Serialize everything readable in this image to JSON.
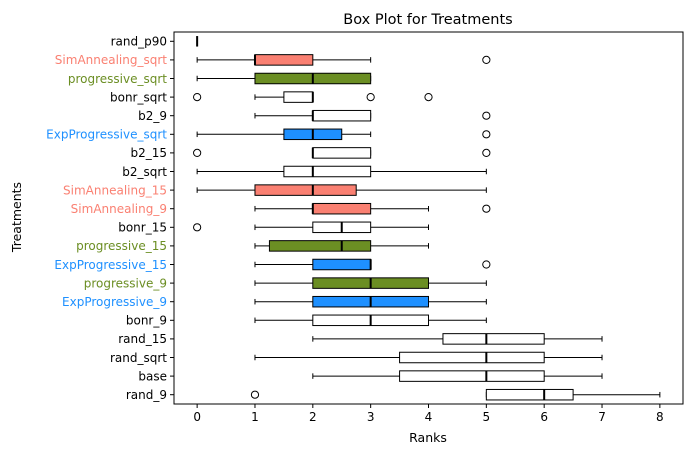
{
  "chart_data": {
    "type": "boxplot",
    "orientation": "horizontal",
    "title": "Box Plot for Treatments",
    "xlabel": "Ranks",
    "ylabel": "Treatments",
    "xlim": [
      -0.4,
      8.4
    ],
    "xticks": [
      0,
      1,
      2,
      3,
      4,
      5,
      6,
      7,
      8
    ],
    "grid": false,
    "colors": {
      "SimAnnealing": "#fa8072",
      "progressive": "#6b8e23",
      "ExpProgressive": "#1e90ff",
      "default": "#ffffff",
      "text_default": "#000000"
    },
    "series": [
      {
        "name": "rand_p90",
        "group": "default",
        "whisker_low": 0,
        "q1": 0,
        "median": 0,
        "q3": 0,
        "whisker_high": 0,
        "outliers": []
      },
      {
        "name": "SimAnnealing_sqrt",
        "group": "SimAnnealing",
        "whisker_low": 0,
        "q1": 1,
        "median": 1,
        "q3": 2,
        "whisker_high": 3,
        "outliers": [
          5
        ]
      },
      {
        "name": "progressive_sqrt",
        "group": "progressive",
        "whisker_low": 0,
        "q1": 1,
        "median": 2,
        "q3": 3,
        "whisker_high": 3,
        "outliers": []
      },
      {
        "name": "bonr_sqrt",
        "group": "default",
        "whisker_low": 1,
        "q1": 1.5,
        "median": 2,
        "q3": 2,
        "whisker_high": 2,
        "outliers": [
          0,
          3,
          4
        ]
      },
      {
        "name": "b2_9",
        "group": "default",
        "whisker_low": 1,
        "q1": 2,
        "median": 2,
        "q3": 3,
        "whisker_high": 3,
        "outliers": [
          5
        ]
      },
      {
        "name": "ExpProgressive_sqrt",
        "group": "ExpProgressive",
        "whisker_low": 0,
        "q1": 1.5,
        "median": 2,
        "q3": 2.5,
        "whisker_high": 3,
        "outliers": [
          5
        ]
      },
      {
        "name": "b2_15",
        "group": "default",
        "whisker_low": 2,
        "q1": 2,
        "median": 2,
        "q3": 3,
        "whisker_high": 3,
        "outliers": [
          0,
          5
        ]
      },
      {
        "name": "b2_sqrt",
        "group": "default",
        "whisker_low": 0,
        "q1": 1.5,
        "median": 2,
        "q3": 3,
        "whisker_high": 5,
        "outliers": []
      },
      {
        "name": "SimAnnealing_15",
        "group": "SimAnnealing",
        "whisker_low": 0,
        "q1": 1,
        "median": 2,
        "q3": 2.75,
        "whisker_high": 5,
        "outliers": []
      },
      {
        "name": "SimAnnealing_9",
        "group": "SimAnnealing",
        "whisker_low": 1,
        "q1": 2,
        "median": 2,
        "q3": 3,
        "whisker_high": 4,
        "outliers": [
          5
        ]
      },
      {
        "name": "bonr_15",
        "group": "default",
        "whisker_low": 1,
        "q1": 2,
        "median": 2.5,
        "q3": 3,
        "whisker_high": 4,
        "outliers": [
          0
        ]
      },
      {
        "name": "progressive_15",
        "group": "progressive",
        "whisker_low": 1,
        "q1": 1.25,
        "median": 2.5,
        "q3": 3,
        "whisker_high": 4,
        "outliers": []
      },
      {
        "name": "ExpProgressive_15",
        "group": "ExpProgressive",
        "whisker_low": 1,
        "q1": 2,
        "median": 3,
        "q3": 3,
        "whisker_high": 3,
        "outliers": [
          5
        ]
      },
      {
        "name": "progressive_9",
        "group": "progressive",
        "whisker_low": 1,
        "q1": 2,
        "median": 3,
        "q3": 4,
        "whisker_high": 5,
        "outliers": []
      },
      {
        "name": "ExpProgressive_9",
        "group": "ExpProgressive",
        "whisker_low": 1,
        "q1": 2,
        "median": 3,
        "q3": 4,
        "whisker_high": 5,
        "outliers": []
      },
      {
        "name": "bonr_9",
        "group": "default",
        "whisker_low": 1,
        "q1": 2,
        "median": 3,
        "q3": 4,
        "whisker_high": 5,
        "outliers": []
      },
      {
        "name": "rand_15",
        "group": "default",
        "whisker_low": 2,
        "q1": 4.25,
        "median": 5,
        "q3": 6,
        "whisker_high": 7,
        "outliers": []
      },
      {
        "name": "rand_sqrt",
        "group": "default",
        "whisker_low": 1,
        "q1": 3.5,
        "median": 5,
        "q3": 6,
        "whisker_high": 7,
        "outliers": []
      },
      {
        "name": "base",
        "group": "default",
        "whisker_low": 2,
        "q1": 3.5,
        "median": 5,
        "q3": 6,
        "whisker_high": 7,
        "outliers": []
      },
      {
        "name": "rand_9",
        "group": "default",
        "whisker_low": 5,
        "q1": 5,
        "median": 6,
        "q3": 6.5,
        "whisker_high": 8,
        "outliers": [
          1
        ]
      }
    ]
  }
}
